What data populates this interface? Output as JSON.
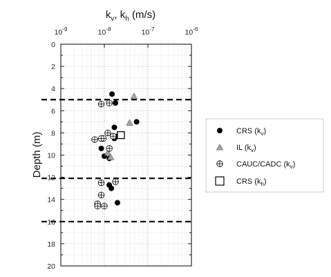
{
  "chart_data": {
    "type": "scatter",
    "xlabel": {
      "base": "k",
      "sub1": "v",
      "mid": ", k",
      "sub2": "h",
      "tail": " (m/s)"
    },
    "ylabel": "Depth (m)",
    "x_scale": "log",
    "xlim": [
      1e-09,
      1e-06
    ],
    "ylim": [
      0,
      20
    ],
    "y_inverted": true,
    "x_ticks": [
      {
        "value": 1e-09,
        "base": "10",
        "exp": "-9"
      },
      {
        "value": 1e-08,
        "base": "10",
        "exp": "-8"
      },
      {
        "value": 1e-07,
        "base": "10",
        "exp": "-7"
      },
      {
        "value": 1e-06,
        "base": "10",
        "exp": "-6"
      }
    ],
    "y_ticks": [
      "0",
      "2",
      "4",
      "6",
      "8",
      "10",
      "12",
      "14",
      "16",
      "18",
      "20"
    ],
    "grid": true,
    "x_tick_position": "top",
    "legend_position": "right-outside",
    "reference_lines_depth": [
      5.0,
      12.1,
      16.0
    ],
    "series": [
      {
        "name": {
          "base": "CRS (k",
          "sub": "v",
          "tail": ")"
        },
        "marker": "filled-circle",
        "color": "#000000",
        "points": [
          {
            "x": 1.5e-08,
            "y": 4.5
          },
          {
            "x": 1.8e-08,
            "y": 5.3
          },
          {
            "x": 1.7e-08,
            "y": 7.5
          },
          {
            "x": 5.5e-08,
            "y": 7.0
          },
          {
            "x": 2e-08,
            "y": 8.3
          },
          {
            "x": 1.7e-08,
            "y": 8.5
          },
          {
            "x": 8.5e-09,
            "y": 9.4
          },
          {
            "x": 1e-08,
            "y": 10.1
          },
          {
            "x": 1.3e-08,
            "y": 10.3
          },
          {
            "x": 1.3e-08,
            "y": 12.7
          },
          {
            "x": 1.45e-08,
            "y": 13.0
          },
          {
            "x": 2e-08,
            "y": 14.3
          }
        ]
      },
      {
        "name": {
          "base": "IL (k",
          "sub": "v",
          "tail": ")"
        },
        "marker": "gray-triangle",
        "color": "#a6a6a6",
        "points": [
          {
            "x": 4.8e-08,
            "y": 4.7
          },
          {
            "x": 3.8e-08,
            "y": 7.1
          },
          {
            "x": 1.2e-08,
            "y": 9.8
          },
          {
            "x": 1.4e-08,
            "y": 10.2
          }
        ]
      },
      {
        "name": {
          "base": "CAUC/CADC (k",
          "sub": "v",
          "tail": ")"
        },
        "marker": "crossed-circle",
        "color": "#000000",
        "points": [
          {
            "x": 8.5e-09,
            "y": 5.4
          },
          {
            "x": 1.3e-08,
            "y": 5.3
          },
          {
            "x": 1.2e-08,
            "y": 8.0
          },
          {
            "x": 9.5e-09,
            "y": 8.5
          },
          {
            "x": 8.5e-09,
            "y": 8.5
          },
          {
            "x": 1.6e-08,
            "y": 8.3
          },
          {
            "x": 6e-09,
            "y": 8.6
          },
          {
            "x": 1.3e-08,
            "y": 9.4
          },
          {
            "x": 8.5e-09,
            "y": 12.5
          },
          {
            "x": 1.8e-08,
            "y": 12.4
          },
          {
            "x": 8.5e-09,
            "y": 13.6
          },
          {
            "x": 7e-09,
            "y": 14.4
          },
          {
            "x": 7e-09,
            "y": 14.6
          },
          {
            "x": 1e-08,
            "y": 14.6
          }
        ]
      },
      {
        "name": {
          "base": "CRS (k",
          "sub": "h",
          "tail": ")"
        },
        "marker": "open-square",
        "color": "#000000",
        "points": [
          {
            "x": 2.4e-08,
            "y": 8.2
          }
        ]
      }
    ]
  }
}
